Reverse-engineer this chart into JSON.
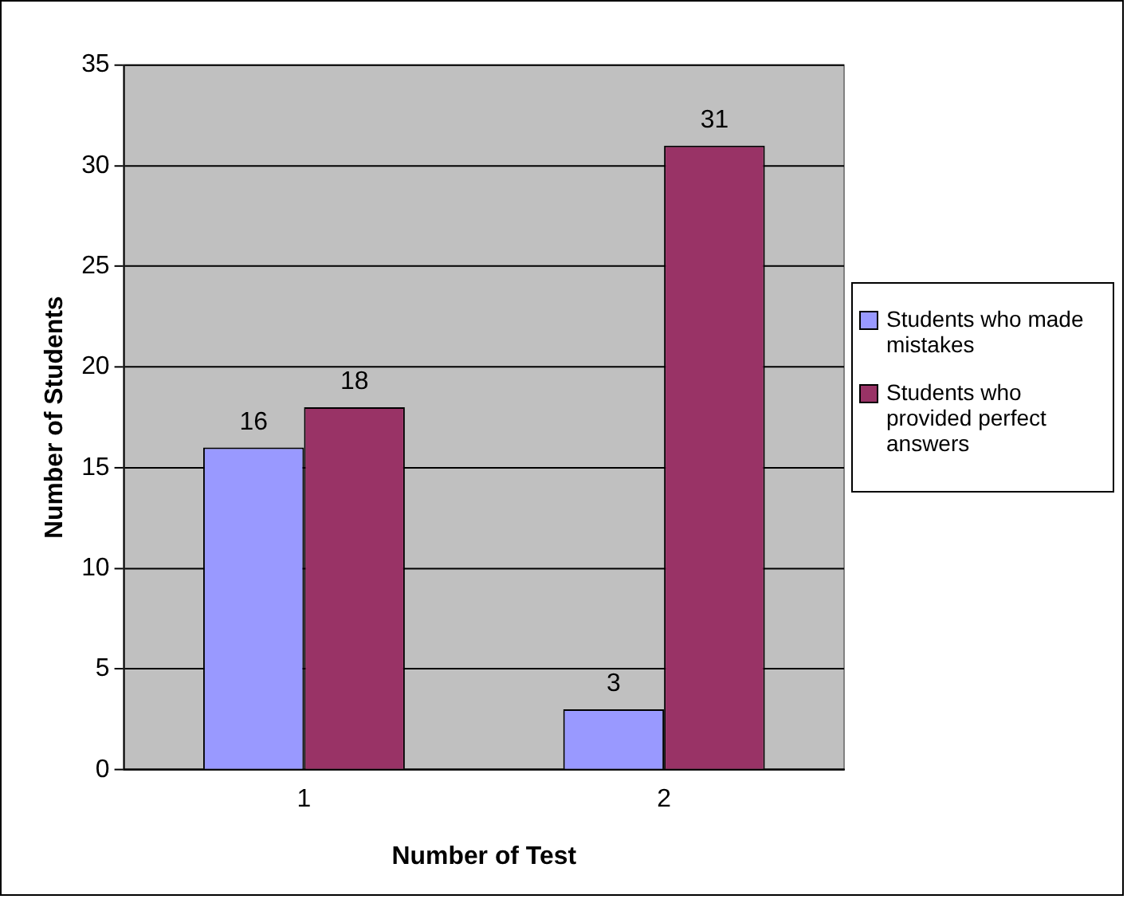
{
  "chart_data": {
    "type": "bar",
    "xlabel": "Number of Test",
    "ylabel": "Number of Students",
    "categories": [
      "1",
      "2"
    ],
    "series": [
      {
        "name": "Students who made mistakes",
        "color": "#9999ff",
        "values": [
          16,
          3
        ]
      },
      {
        "name": "Students who provided perfect answers",
        "color": "#993366",
        "values": [
          18,
          31
        ]
      }
    ],
    "ylim": [
      0,
      35
    ],
    "yticks": [
      0,
      5,
      10,
      15,
      20,
      25,
      30,
      35
    ],
    "grid": "y",
    "legend": "right",
    "data_labels": true
  }
}
